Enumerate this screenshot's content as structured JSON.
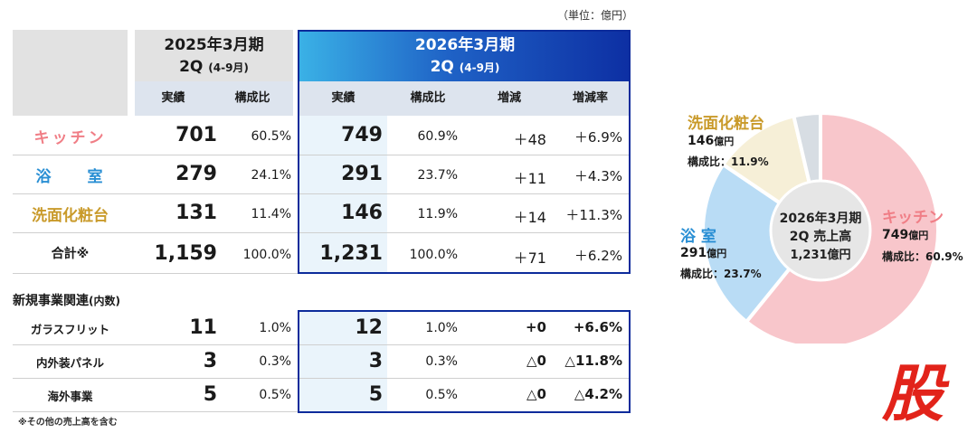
{
  "unit": "（単位：億円）",
  "header": {
    "prev_period": "2025年3月期",
    "prev_sub": "2Q",
    "prev_sub_range": "(4-9月)",
    "cur_period": "2026年3月期",
    "cur_sub": "2Q",
    "cur_sub_range": "(4-9月)",
    "cols": [
      "実績",
      "構成比",
      "実績",
      "構成比",
      "増減",
      "増減率"
    ]
  },
  "rows": [
    {
      "label": "キッチン",
      "prev": "701",
      "prev_ratio": "60.5%",
      "cur": "749",
      "cur_ratio": "60.9%",
      "diff": "＋48",
      "rate": "＋6.9%"
    },
    {
      "label": "浴　　室",
      "prev": "279",
      "prev_ratio": "24.1%",
      "cur": "291",
      "cur_ratio": "23.7%",
      "diff": "＋11",
      "rate": "＋4.3%"
    },
    {
      "label": "洗面化粧台",
      "prev": "131",
      "prev_ratio": "11.4%",
      "cur": "146",
      "cur_ratio": "11.9%",
      "diff": "＋14",
      "rate": "＋11.3%"
    },
    {
      "label": "合計※",
      "prev": "1,159",
      "prev_ratio": "100.0%",
      "cur": "1,231",
      "cur_ratio": "100.0%",
      "diff": "＋71",
      "rate": "＋6.2%"
    }
  ],
  "section2_title": "新規事業関連",
  "section2_sub": "(内数)",
  "rows2": [
    {
      "label": "ガラスフリット",
      "prev": "11",
      "prev_ratio": "1.0%",
      "cur": "12",
      "cur_ratio": "1.0%",
      "diff": "+0",
      "rate": "+6.6%"
    },
    {
      "label": "内外装パネル",
      "prev": "3",
      "prev_ratio": "0.3%",
      "cur": "3",
      "cur_ratio": "0.3%",
      "diff": "△0",
      "rate": "△11.8%"
    },
    {
      "label": "海外事業",
      "prev": "5",
      "prev_ratio": "0.5%",
      "cur": "5",
      "cur_ratio": "0.5%",
      "diff": "△0",
      "rate": "△4.2%"
    }
  ],
  "note": "※その他の売上高を含む",
  "stamp": "股",
  "chart_data": {
    "type": "pie",
    "title": "",
    "center_lines": [
      "2026年3月期",
      "2Q 売上高",
      "1,231億円"
    ],
    "slices": [
      {
        "name": "キッチン",
        "value": 749,
        "value_label": "749",
        "unit": "億円",
        "ratio_label": "構成比：60.9%",
        "color": "#f8c6cb"
      },
      {
        "name": "浴 室",
        "value": 291,
        "value_label": "291",
        "unit": "億円",
        "ratio_label": "構成比：23.7%",
        "color": "#b9dcf5"
      },
      {
        "name": "洗面化粧台",
        "value": 146,
        "value_label": "146",
        "unit": "億円",
        "ratio_label": "構成比：11.9%",
        "color": "#f6efd7"
      },
      {
        "name": "",
        "value": 45,
        "color": "#d7dde3"
      }
    ]
  }
}
